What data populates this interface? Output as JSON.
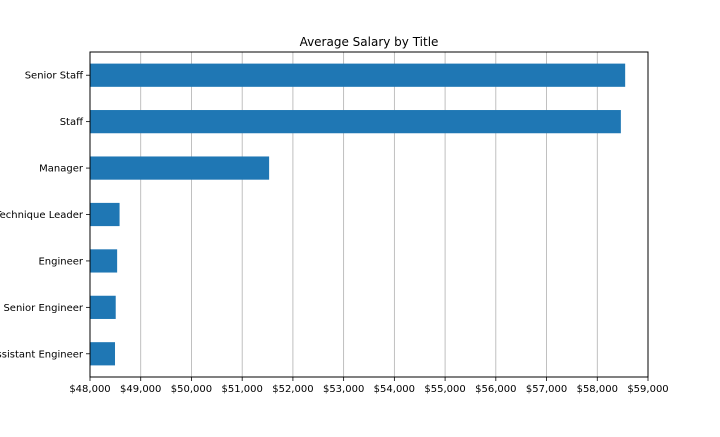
{
  "chart_data": {
    "type": "bar",
    "orientation": "horizontal",
    "title": "Average Salary by Title",
    "xlabel": "",
    "ylabel": "",
    "categories": [
      "Senior Staff",
      "Staff",
      "Manager",
      "Technique Leader",
      "Engineer",
      "Senior Engineer",
      "Assistant Engineer"
    ],
    "values": [
      58550,
      58465,
      51531,
      48583,
      48535,
      48507,
      48493
    ],
    "xlim": [
      48000,
      59000
    ],
    "xticks": [
      48000,
      49000,
      50000,
      51000,
      52000,
      53000,
      54000,
      55000,
      56000,
      57000,
      58000,
      59000
    ],
    "xtick_labels": [
      "$48,000",
      "$49,000",
      "$50,000",
      "$51,000",
      "$52,000",
      "$53,000",
      "$54,000",
      "$55,000",
      "$56,000",
      "$57,000",
      "$58,000",
      "$59,000"
    ],
    "grid": "vertical",
    "bar_color": "#1f77b4",
    "grid_color": "#b0b0b0"
  }
}
